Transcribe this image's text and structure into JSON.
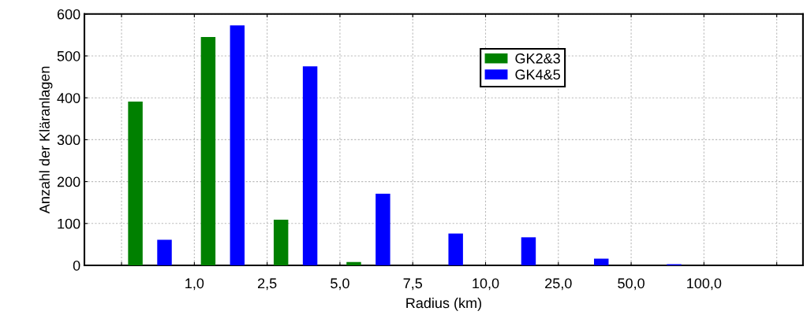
{
  "chart_data": {
    "type": "bar",
    "xlabel": "Radius (km)",
    "ylabel": "Anzahl der Kläranlagen",
    "categories": [
      null,
      null,
      null,
      null,
      null,
      null,
      null,
      null,
      null
    ],
    "annotations": [
      "1,0",
      "2,5",
      "5,0",
      "7,5",
      "10,0",
      "25,0",
      "50,0",
      "100,0"
    ],
    "ylim": [
      0,
      600
    ],
    "yticks": [
      0,
      100,
      200,
      300,
      400,
      500,
      600
    ],
    "series": [
      {
        "name": "GK2&3",
        "color": "#008000",
        "values": [
          391,
          545,
          109,
          8,
          null,
          null,
          null,
          null,
          null
        ]
      },
      {
        "name": "GK4&5",
        "color": "#0000ff",
        "values": [
          61,
          573,
          475,
          171,
          76,
          67,
          16,
          3,
          null
        ]
      }
    ],
    "grid": true,
    "legend": "top"
  }
}
